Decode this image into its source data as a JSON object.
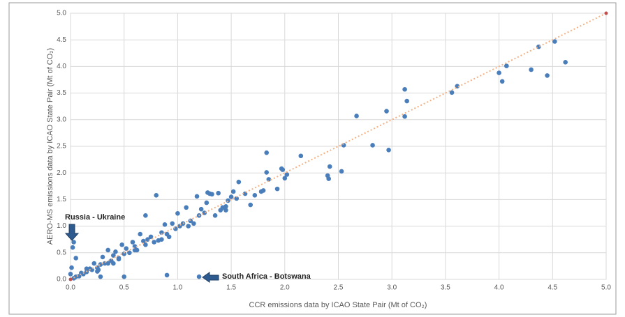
{
  "chart_data": {
    "type": "scatter",
    "x_label": "CCR emissions data by ICAO State Pair (Mt of CO₂)",
    "y_label": "AERO-MS emissions data by ICAO State Pair (Mt of CO₂)",
    "annotations": [
      "Russia - Ukraine",
      "South Africa - Botswana"
    ],
    "xlim": [
      0,
      5
    ],
    "ylim": [
      0,
      5
    ],
    "xticks": [
      {
        "value": 0,
        "label": "0.0"
      },
      0.5,
      {
        "value": 1,
        "label": "1.0"
      },
      1.5,
      {
        "value": 2,
        "label": "2.0"
      },
      2.5,
      {
        "value": 3,
        "label": "3.0"
      },
      3.5,
      {
        "value": 4,
        "label": "4.0"
      },
      4.5,
      {
        "value": 5,
        "label": "5.0"
      }
    ],
    "yticks": [
      {
        "value": 0,
        "label": "0.0"
      },
      0.5,
      {
        "value": 1,
        "label": "1.0"
      },
      1.5,
      {
        "value": 2,
        "label": "2.0"
      },
      2.5,
      {
        "value": 3,
        "label": "3.0"
      },
      3.5,
      {
        "value": 4,
        "label": "4.0"
      },
      4.5,
      {
        "value": 5,
        "label": "5.0"
      }
    ],
    "grid": true,
    "color": "#4a7ebb",
    "reference_line": {
      "x": [
        0,
        5
      ],
      "y": [
        0,
        5
      ],
      "color": "#f4b183",
      "marker_color": "#c0504d"
    },
    "x": [
      4.62,
      4.52,
      4.45,
      4.37,
      4.3,
      4.07,
      4.03,
      4.0,
      3.61,
      3.56,
      3.14,
      3.12,
      3.12,
      2.97,
      2.95,
      2.82,
      2.67,
      2.55,
      2.53,
      2.42,
      2.4,
      2.41,
      2.15,
      2.02,
      2.0,
      1.98,
      1.97,
      1.93,
      1.85,
      1.83,
      1.83,
      1.8,
      1.78,
      1.72,
      1.68,
      1.63,
      1.57,
      1.55,
      1.52,
      1.5,
      1.47,
      1.45,
      1.42,
      1.4,
      1.38,
      1.35,
      1.32,
      1.3,
      1.28,
      1.27,
      1.25,
      1.22,
      1.2,
      1.18,
      1.15,
      1.12,
      1.08,
      1.05,
      1.02,
      1.0,
      0.98,
      0.95,
      0.92,
      0.9,
      0.88,
      0.85,
      0.82,
      0.8,
      0.78,
      0.75,
      0.72,
      0.7,
      0.68,
      0.65,
      0.62,
      0.6,
      0.58,
      0.55,
      0.52,
      0.5,
      0.48,
      0.45,
      0.42,
      0.4,
      0.38,
      0.35,
      0.32,
      0.3,
      0.28,
      0.25,
      0.22,
      0.2,
      0.18,
      0.15,
      0.12,
      0.1,
      0.08,
      0.05,
      0.03,
      0.02,
      0.03,
      0.01,
      0.0,
      1.2,
      0.9,
      0.5,
      0.28,
      0.26,
      0.05,
      0.6,
      0.7,
      0.45,
      0.35,
      0.15,
      0.85,
      1.1,
      1.45,
      0.4,
      0.25
    ],
    "y": [
      4.08,
      4.47,
      3.83,
      4.37,
      3.94,
      4.01,
      3.72,
      3.88,
      3.63,
      3.51,
      3.35,
      3.57,
      3.06,
      2.43,
      3.16,
      2.52,
      3.07,
      2.52,
      2.03,
      2.12,
      1.95,
      1.89,
      2.32,
      1.97,
      1.9,
      2.06,
      2.08,
      1.7,
      1.88,
      2.38,
      2.01,
      1.67,
      1.65,
      1.58,
      1.4,
      1.61,
      1.83,
      1.52,
      1.65,
      1.55,
      1.48,
      1.37,
      1.35,
      1.3,
      1.62,
      1.2,
      1.6,
      1.61,
      1.63,
      1.44,
      1.25,
      1.32,
      1.2,
      1.56,
      1.05,
      1.1,
      1.35,
      1.05,
      1.0,
      1.24,
      0.95,
      1.05,
      0.8,
      0.85,
      1.03,
      0.75,
      0.73,
      1.58,
      0.7,
      0.8,
      0.75,
      1.2,
      0.72,
      0.85,
      0.55,
      0.62,
      0.7,
      0.5,
      0.58,
      0.48,
      0.65,
      0.4,
      0.52,
      0.45,
      0.35,
      0.55,
      0.3,
      0.42,
      0.28,
      0.22,
      0.3,
      0.18,
      0.2,
      0.14,
      0.1,
      0.12,
      0.06,
      0.05,
      0.02,
      0.6,
      0.7,
      0.22,
      0.1,
      0.05,
      0.08,
      0.05,
      0.05,
      0.18,
      0.4,
      0.55,
      0.65,
      0.38,
      0.3,
      0.2,
      0.88,
      1.0,
      1.3,
      0.3,
      0.15
    ]
  }
}
